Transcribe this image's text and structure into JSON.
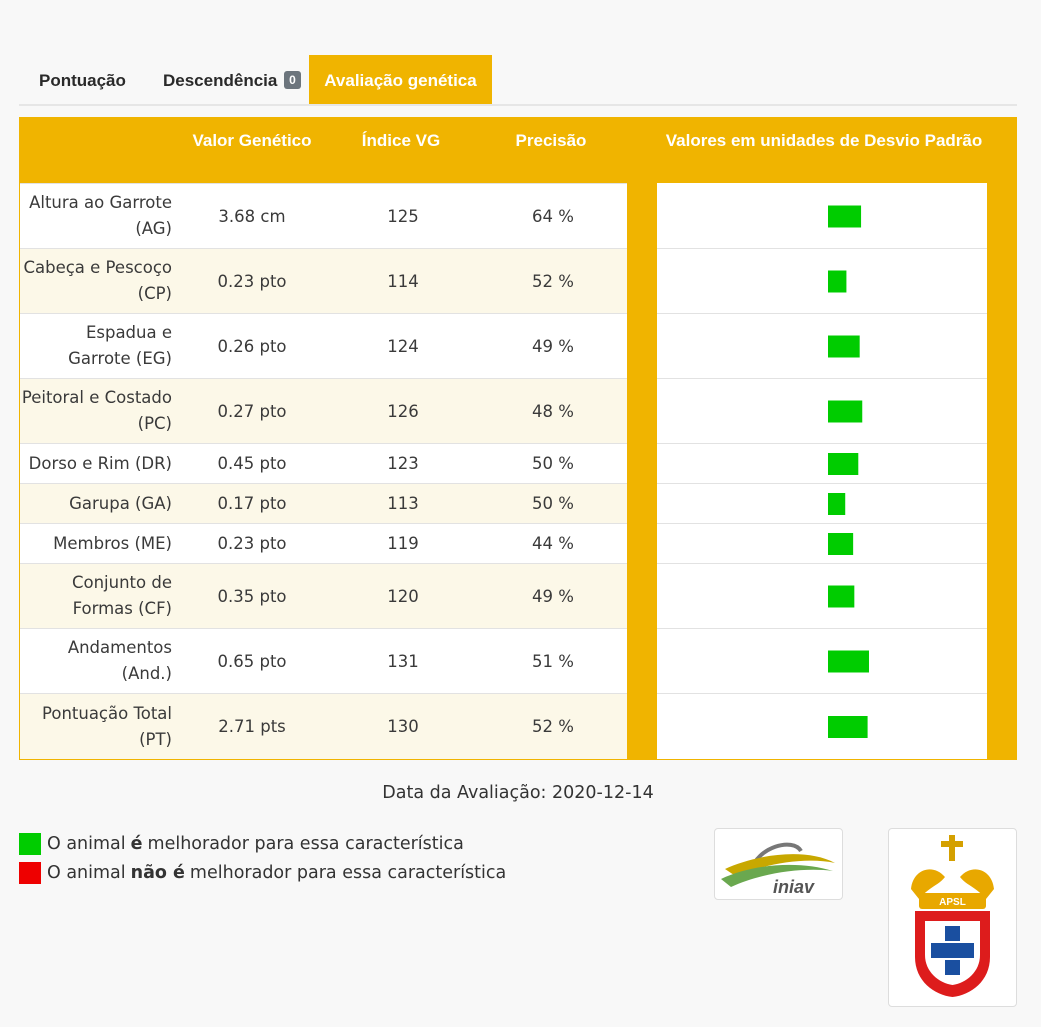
{
  "tabs": [
    {
      "label": "Pontuação"
    },
    {
      "label": "Descendência",
      "badge": "0"
    },
    {
      "label": "Avaliação genética"
    }
  ],
  "table": {
    "headers": {
      "valor_genetico": "Valor Genético",
      "indice_vg": "Índice VG",
      "precisao": "Precisão",
      "desvio_padrao": "Valores em unidades de Desvio Padrão"
    },
    "rows": [
      {
        "name": "Altura ao Garrote (AG)",
        "vg": "3.68 cm",
        "indice": "125",
        "precisao": "64 %"
      },
      {
        "name": "Cabeça e Pescoço (CP)",
        "vg": "0.23 pto",
        "indice": "114",
        "precisao": "52 %"
      },
      {
        "name": "Espadua e Garrote (EG)",
        "vg": "0.26 pto",
        "indice": "124",
        "precisao": "49 %"
      },
      {
        "name": "Peitoral e Costado (PC)",
        "vg": "0.27 pto",
        "indice": "126",
        "precisao": "48 %"
      },
      {
        "name": "Dorso e Rim (DR)",
        "vg": "0.45 pto",
        "indice": "123",
        "precisao": "50 %"
      },
      {
        "name": "Garupa (GA)",
        "vg": "0.17 pto",
        "indice": "113",
        "precisao": "50 %"
      },
      {
        "name": "Membros (ME)",
        "vg": "0.23 pto",
        "indice": "119",
        "precisao": "44 %"
      },
      {
        "name": "Conjunto de Formas (CF)",
        "vg": "0.35 pto",
        "indice": "120",
        "precisao": "49 %"
      },
      {
        "name": "Andamentos (And.)",
        "vg": "0.65 pto",
        "indice": "131",
        "precisao": "51 %"
      },
      {
        "name": "Pontuação Total (PT)",
        "vg": "2.71 pts",
        "indice": "130",
        "precisao": "52 %"
      }
    ]
  },
  "chart_data": {
    "type": "bar",
    "orientation": "horizontal",
    "title": "Valores em unidades de Desvio Padrão",
    "categories": [
      "AG",
      "CP",
      "EG",
      "PC",
      "DR",
      "GA",
      "ME",
      "CF",
      "And.",
      "PT"
    ],
    "values": [
      1.67,
      0.93,
      1.6,
      1.73,
      1.53,
      0.87,
      1.27,
      1.33,
      2.07,
      2.0
    ],
    "xlim": [
      -2.5,
      2.5
    ],
    "positive_color": "#00cc00",
    "negative_color": "#ee0000",
    "grid": false,
    "axis_labels_visible": false
  },
  "date": "Data da Avaliação: 2020-12-14",
  "legend": {
    "positive": {
      "pre": "O animal",
      "strong": "é",
      "post": "melhorador para essa característica",
      "color": "#00cc00"
    },
    "negative": {
      "pre": "O animal",
      "strong": "não é",
      "post": "melhorador para essa característica",
      "color": "#ee0000"
    }
  },
  "logos": {
    "iniav": "iniav",
    "apsl": "APSL"
  },
  "colors": {
    "accent": "#f0b400",
    "row_alt": "#fcf8e8",
    "badge": "#6c757d"
  }
}
